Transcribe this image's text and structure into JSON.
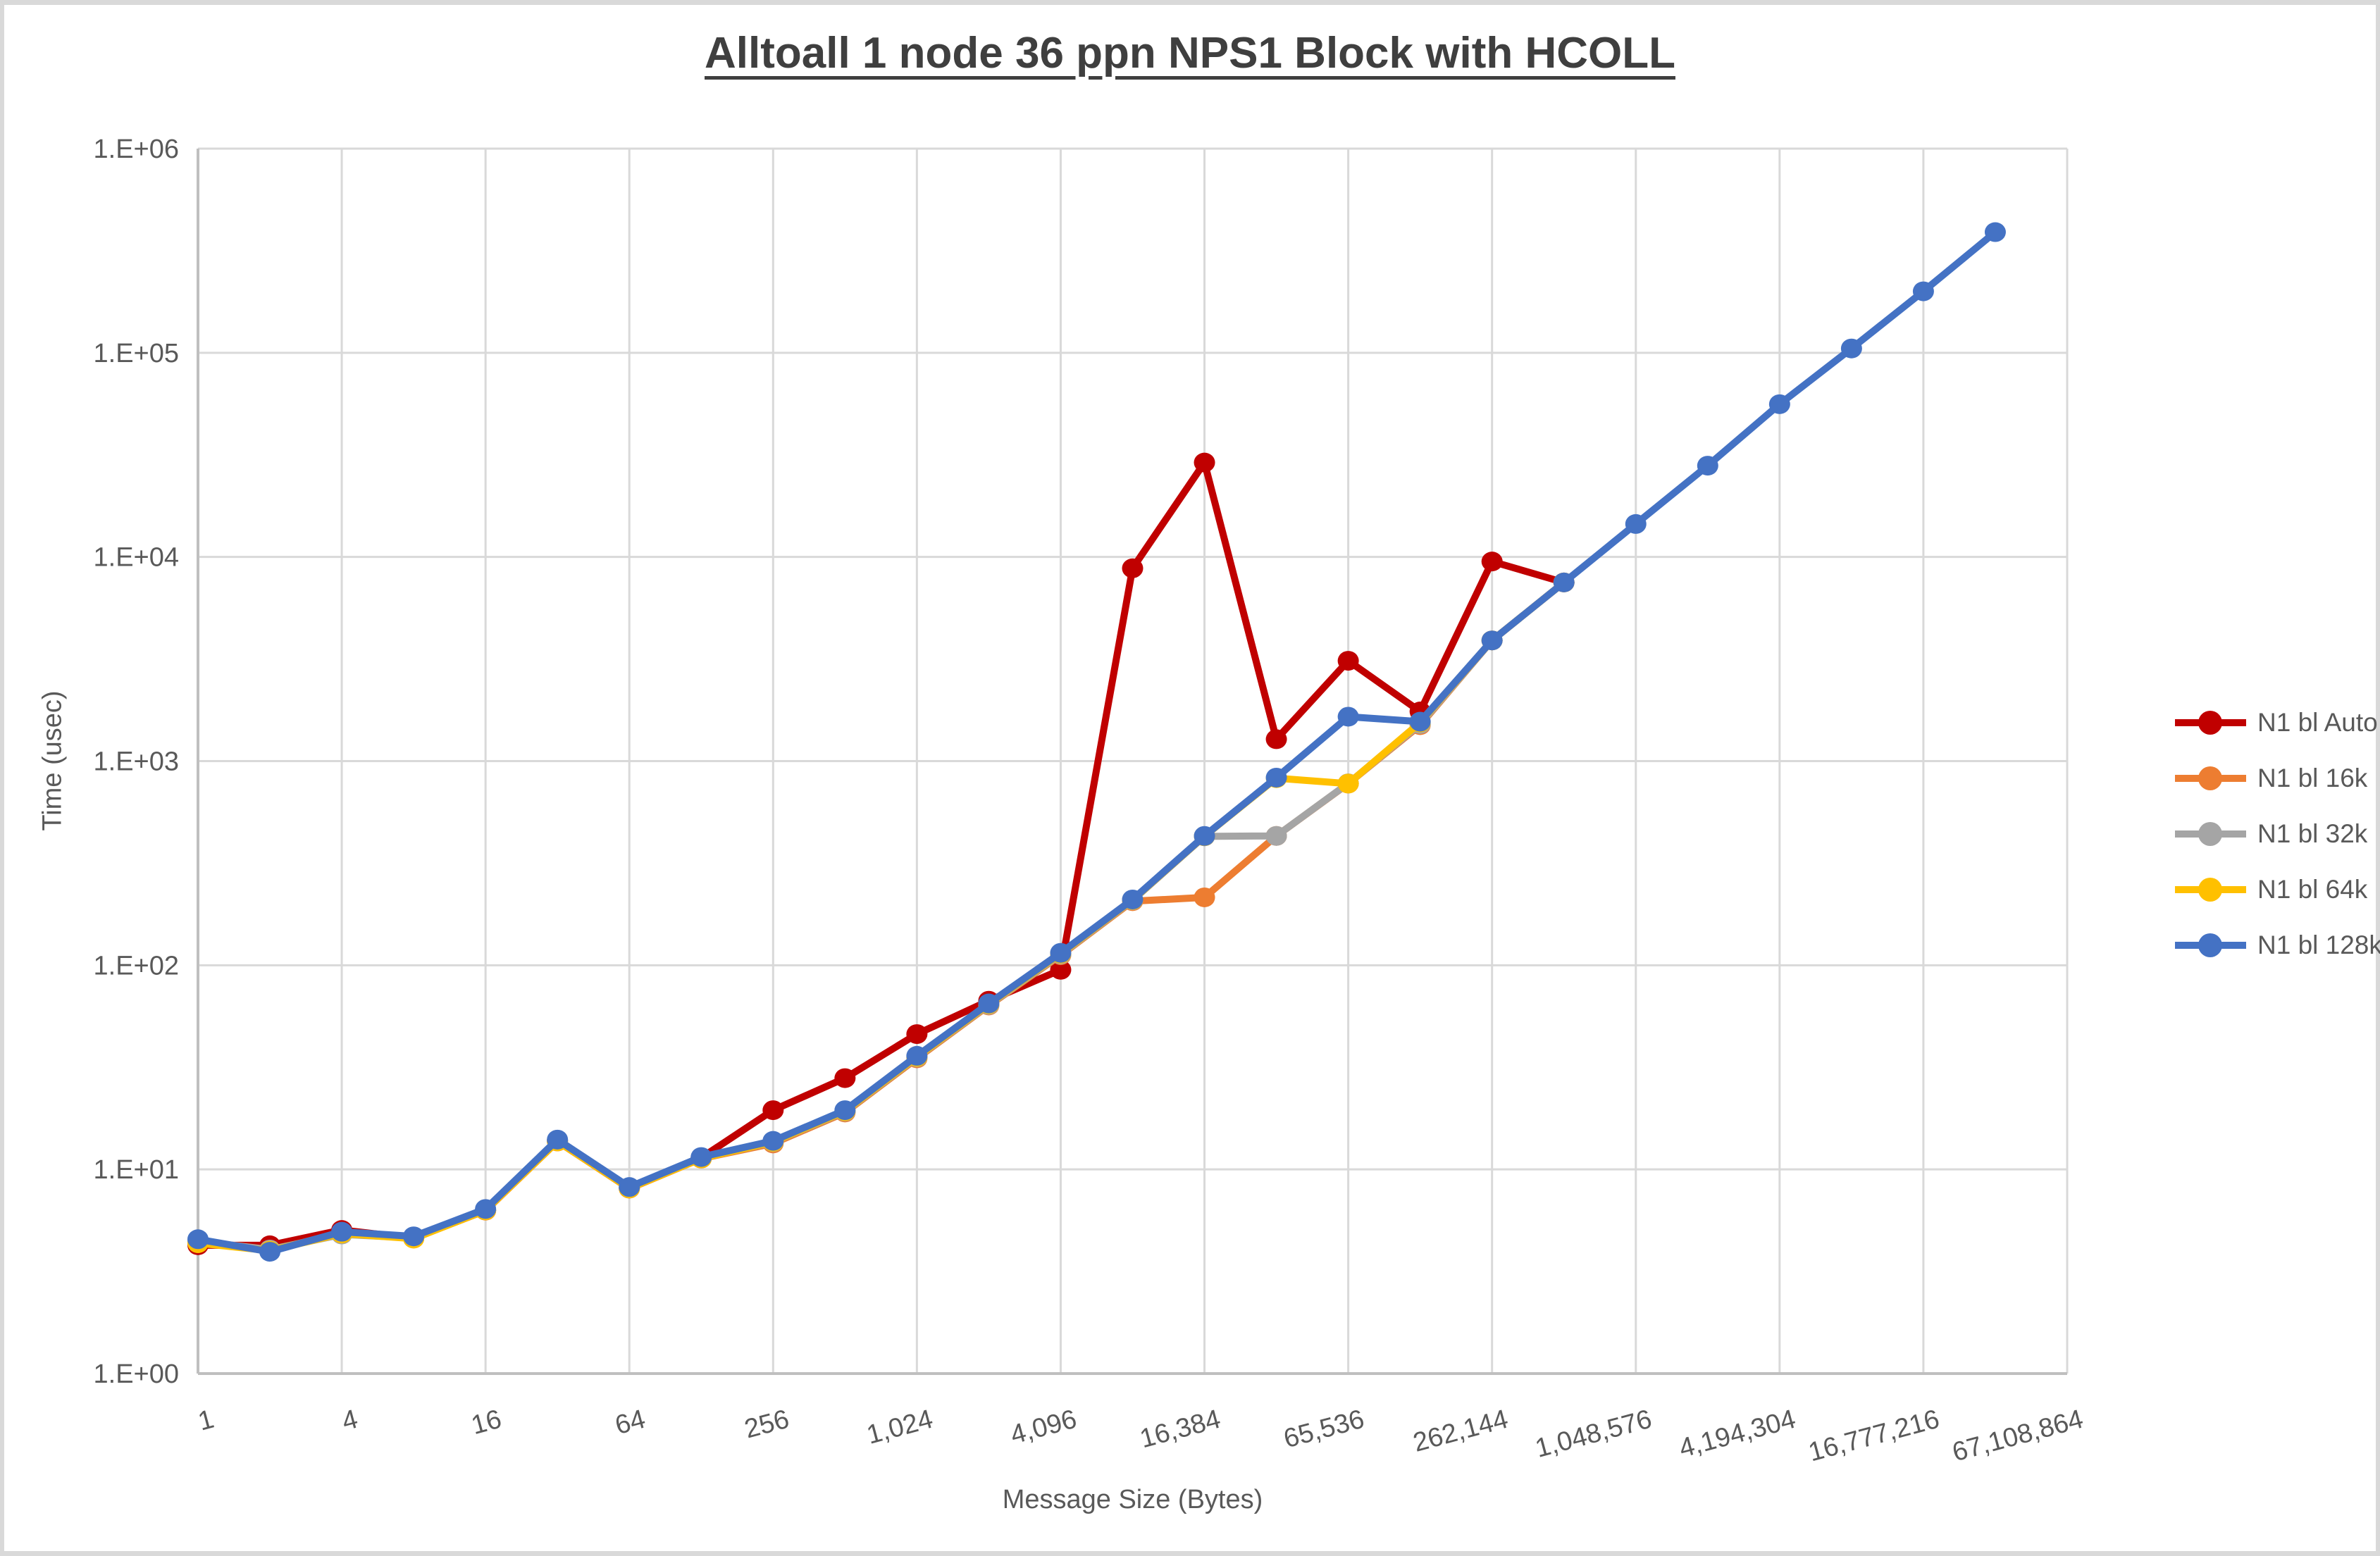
{
  "title": "Alltoall 1 node 36 ppn NPS1 Block with HCOLL",
  "colors": {
    "background": "#ffffff",
    "gridline": "#d9d9d9",
    "axis_line": "#bfbfbf",
    "tick_text": "#595959",
    "title_text": "#3f3f3f",
    "edge_band": "#d9d9d9"
  },
  "chart_data": {
    "type": "line",
    "title": "Alltoall 1 node 36 ppn NPS1 Block with HCOLL",
    "xlabel": "Message Size (Bytes)",
    "ylabel": "Time (usec)",
    "x_scale": "categorical-log2",
    "y_scale": "log10",
    "ylim": [
      1,
      1000000
    ],
    "grid": "both",
    "legend_position": "right",
    "y_tick_labels": [
      "1.E+00",
      "1.E+01",
      "1.E+02",
      "1.E+03",
      "1.E+04",
      "1.E+05",
      "1.E+06"
    ],
    "x_tick_labels": [
      "1",
      "4",
      "16",
      "64",
      "256",
      "1,024",
      "4,096",
      "16,384",
      "65,536",
      "262,144",
      "1,048,576",
      "4,194,304",
      "16,777,216",
      "67,108,864"
    ],
    "categories": [
      1,
      2,
      4,
      8,
      16,
      32,
      64,
      128,
      256,
      512,
      1024,
      2048,
      4096,
      8192,
      16384,
      32768,
      65536,
      131072,
      262144,
      524288,
      1048576,
      2097152,
      4194304,
      8388608,
      16777216,
      33554432,
      67108864
    ],
    "series": [
      {
        "name": "N1 bl Auto",
        "color": "#c00000",
        "values": [
          4.25,
          4.25,
          5.05,
          4.6,
          6.3,
          13.8,
          8.1,
          11.4,
          19.5,
          28,
          46,
          67,
          95,
          8800,
          29000,
          1280,
          3100,
          1750,
          9500,
          7500,
          null,
          null,
          null,
          null,
          null,
          null,
          null
        ]
      },
      {
        "name": "N1 bl 16k",
        "color": "#ed7d31",
        "values": [
          4.4,
          4.0,
          4.9,
          4.6,
          6.28,
          13.7,
          8.05,
          11.3,
          13.4,
          19.0,
          35,
          63.5,
          112,
          206,
          215,
          430,
          776,
          1500,
          3900,
          7500,
          null,
          null,
          null,
          null,
          null,
          null,
          null
        ]
      },
      {
        "name": "N1 bl 32k",
        "color": "#a5a5a5",
        "values": [
          4.45,
          4.05,
          4.8,
          4.62,
          6.32,
          13.75,
          8.1,
          11.35,
          13.6,
          19.2,
          35.4,
          64,
          113,
          208,
          428,
          430,
          778,
          1520,
          3900,
          7500,
          null,
          null,
          null,
          null,
          null,
          null,
          null
        ]
      },
      {
        "name": "N1 bl 64k",
        "color": "#ffc000",
        "values": [
          4.35,
          4.0,
          4.85,
          4.58,
          6.3,
          13.72,
          8.07,
          11.32,
          13.65,
          19.3,
          35.6,
          64.5,
          114,
          209,
          429,
          825,
          776,
          1545,
          3900,
          7500,
          null,
          null,
          null,
          null,
          null,
          null,
          null
        ]
      },
      {
        "name": "N1 bl 128k",
        "color": "#4472c4",
        "values": [
          4.55,
          3.95,
          4.95,
          4.7,
          6.4,
          14.0,
          8.2,
          11.5,
          13.8,
          19.5,
          36,
          65,
          115,
          210,
          430,
          830,
          1650,
          1560,
          3900,
          7500,
          14500,
          28000,
          56000,
          105000,
          200000,
          390000,
          null
        ]
      }
    ]
  }
}
